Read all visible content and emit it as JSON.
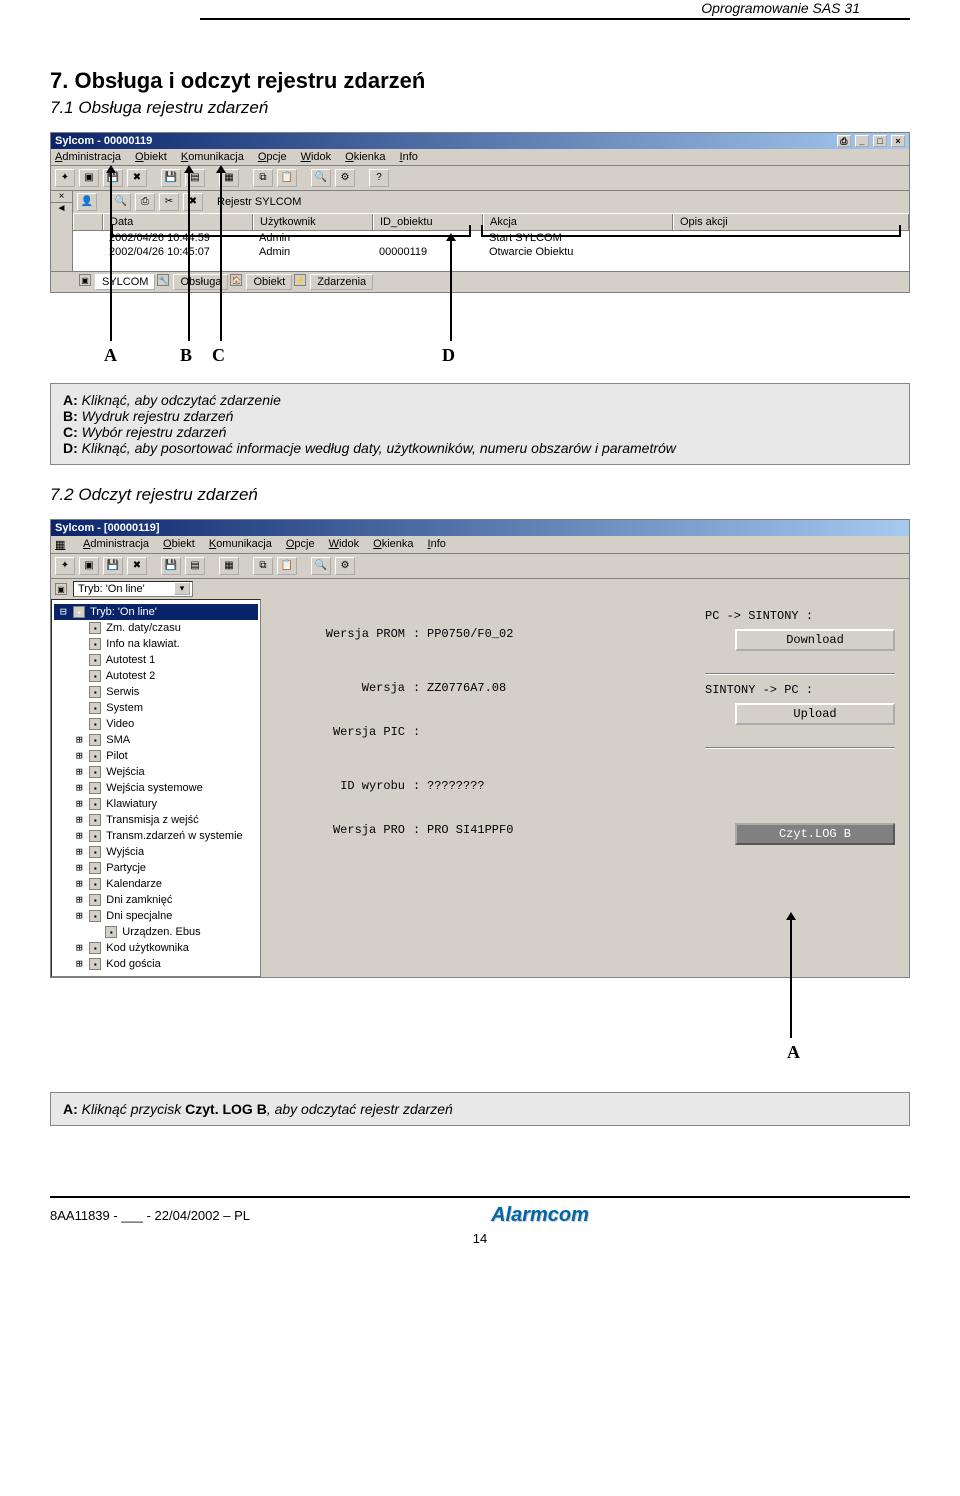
{
  "doc": {
    "header_right": "Oprogramowanie SAS 31",
    "section_title": "7. Obsługa i odczyt rejestru zdarzeń",
    "subsection_71": "7.1 Obsługa rejestru zdarzeń",
    "subsection_72": "7.2 Odczyt rejestru zdarzeń",
    "footer_left": "8AA11839 - ___ - 22/04/2002 – PL",
    "footer_logo": "Alarmcom",
    "page_number": "14"
  },
  "ss1": {
    "title": "Sylcom - 00000119",
    "menu": [
      "Administracja",
      "Obiekt",
      "Komunikacja",
      "Opcje",
      "Widok",
      "Okienka",
      "Info"
    ],
    "subtoolbar_label": "Rejestr SYLCOM",
    "columns": [
      "Data",
      "Użytkownik",
      "ID_obiektu",
      "Akcja",
      "Opis akcji"
    ],
    "rows": [
      {
        "data": "2002/04/26 10:44:59",
        "user": "Admin",
        "id": "",
        "akcja": "Start SYLCOM",
        "opis": ""
      },
      {
        "data": "2002/04/26 10:45:07",
        "user": "Admin",
        "id": "00000119",
        "akcja": "Otwarcie Obiektu",
        "opis": ""
      }
    ],
    "tabs": [
      "SYLCOM",
      "Obsługa",
      "Obiekt",
      "Zdarzenia"
    ],
    "labels": {
      "A": "A",
      "B": "B",
      "C": "C",
      "D": "D"
    }
  },
  "legend1": {
    "A": "Kliknąć, aby odczytać zdarzenie",
    "B": "Wydruk rejestru zdarzeń",
    "C": "Wybór rejestru zdarzeń",
    "D": "Kliknąć, aby posortować informacje według daty, użytkowników, numeru obszarów i parametrów"
  },
  "ss2": {
    "title": "Sylcom - [00000119]",
    "menu": [
      "Administracja",
      "Obiekt",
      "Komunikacja",
      "Opcje",
      "Widok",
      "Okienka",
      "Info"
    ],
    "tryb_label": "Tryb: 'On line'",
    "tree": [
      {
        "text": "Tryb: 'On line'",
        "indent": 0,
        "sel": true
      },
      {
        "text": "Zm. daty/czasu",
        "indent": 1
      },
      {
        "text": "Info na klawiat.",
        "indent": 1
      },
      {
        "text": "Autotest 1",
        "indent": 1
      },
      {
        "text": "Autotest 2",
        "indent": 1
      },
      {
        "text": "Serwis",
        "indent": 1
      },
      {
        "text": "System",
        "indent": 1
      },
      {
        "text": "Video",
        "indent": 1
      },
      {
        "text": "SMA",
        "indent": 1,
        "pm": "+"
      },
      {
        "text": "Pilot",
        "indent": 1,
        "pm": "+"
      },
      {
        "text": "Wejścia",
        "indent": 1,
        "pm": "+"
      },
      {
        "text": "Wejścia systemowe",
        "indent": 1,
        "pm": "+"
      },
      {
        "text": "Klawiatury",
        "indent": 1,
        "pm": "+"
      },
      {
        "text": "Transmisja z wejść",
        "indent": 1,
        "pm": "+"
      },
      {
        "text": "Transm.zdarzeń w systemie",
        "indent": 1,
        "pm": "+"
      },
      {
        "text": "Wyjścia",
        "indent": 1,
        "pm": "+"
      },
      {
        "text": "Partycje",
        "indent": 1,
        "pm": "+"
      },
      {
        "text": "Kalendarze",
        "indent": 1,
        "pm": "+"
      },
      {
        "text": "Dni zamknięć",
        "indent": 1,
        "pm": "+"
      },
      {
        "text": "Dni specjalne",
        "indent": 1,
        "pm": "+"
      },
      {
        "text": "Urządzen. Ebus",
        "indent": 2
      },
      {
        "text": "Kod użytkownika",
        "indent": 1,
        "pm": "+"
      },
      {
        "text": "Kod gościa",
        "indent": 1,
        "pm": "+"
      }
    ],
    "panel": {
      "wersja_prom_label": "Wersja PROM",
      "wersja_prom": "PP0750/F0_02",
      "wersja_label": "Wersja",
      "wersja": "ZZ0776A7.08",
      "wersja_pic_label": "Wersja PIC",
      "wersja_pic": "",
      "id_wyrobu_label": "ID wyrobu",
      "id_wyrobu": "????????",
      "wersja_pro_label": "Wersja PRO",
      "wersja_pro": "PRO SI41PPF0"
    },
    "right": {
      "pc_sintony": "PC -> SINTONY :",
      "download": "Download",
      "sintony_pc": "SINTONY -> PC :",
      "upload": "Upload",
      "czyt_log": "Czyt.LOG B"
    }
  },
  "legend2": {
    "label_A": "A",
    "A_prefix": "Kliknąć przycisk ",
    "A_bold": "Czyt. LOG B",
    "A_suffix": ", aby odczytać rejestr zdarzeń"
  }
}
